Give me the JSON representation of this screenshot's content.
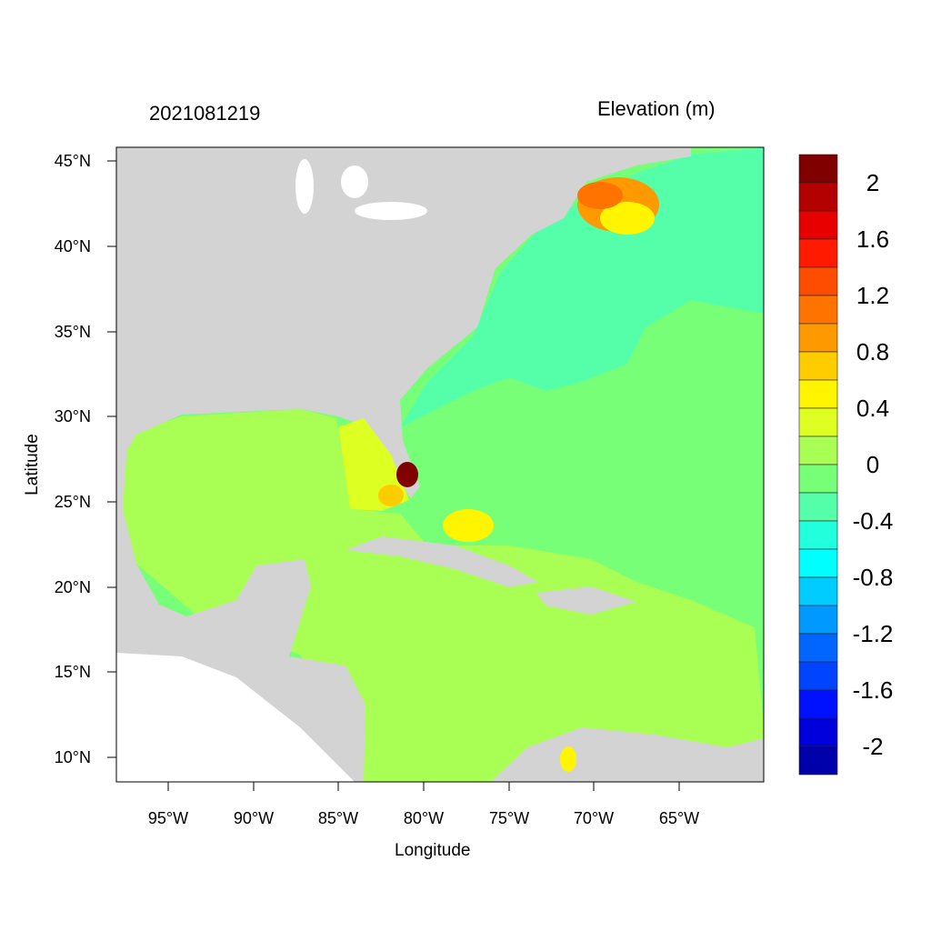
{
  "title_left": "2021081219",
  "title_right": "Elevation (m)",
  "xlabel": "Longitude",
  "ylabel": "Latitude",
  "lat_ticks": [
    "45°N",
    "40°N",
    "35°N",
    "30°N",
    "25°N",
    "20°N",
    "15°N",
    "10°N"
  ],
  "lon_ticks": [
    "95°W",
    "90°W",
    "85°W",
    "80°W",
    "75°W",
    "70°W",
    "65°W"
  ],
  "extent": {
    "lon": [
      -98.0,
      -60.0
    ],
    "lat": [
      8.6,
      45.8
    ]
  },
  "colorbar": {
    "labels": [
      "2",
      "1.6",
      "1.2",
      "0.8",
      "0.4",
      "0",
      "-0.4",
      "-0.8",
      "-1.2",
      "-1.6",
      "-2"
    ],
    "colors": [
      "#800000",
      "#b30000",
      "#e60000",
      "#ff1a00",
      "#ff4d00",
      "#ff7300",
      "#ff9900",
      "#ffcc00",
      "#fff500",
      "#ddff22",
      "#aaff55",
      "#77ff77",
      "#55ffaa",
      "#22ffdd",
      "#00ffff",
      "#00ccff",
      "#0099ff",
      "#0066ff",
      "#0044ff",
      "#0011ff",
      "#0000dd",
      "#0000aa"
    ]
  },
  "land_color": "#d3d3d3"
}
